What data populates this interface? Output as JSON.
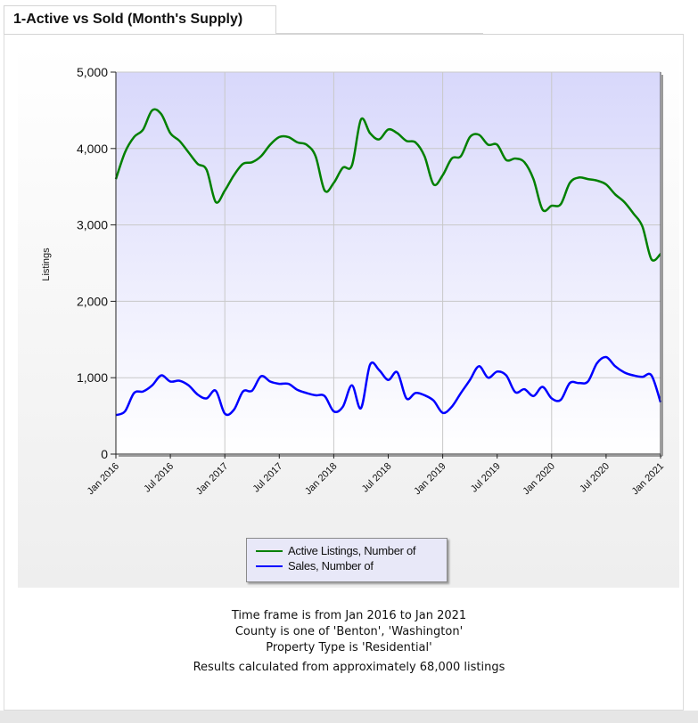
{
  "header": {
    "title": "1-Active vs Sold (Month's Supply)"
  },
  "chart_data": {
    "type": "line",
    "title": "",
    "xlabel": "",
    "ylabel": "Listings",
    "ylim": [
      0,
      5000
    ],
    "yticks": [
      0,
      1000,
      2000,
      3000,
      4000,
      5000
    ],
    "ytick_labels": [
      "0",
      "1,000",
      "2,000",
      "3,000",
      "4,000",
      "5,000"
    ],
    "xtick_labels": [
      "Jan 2016",
      "Jul 2016",
      "Jan 2017",
      "Jul 2017",
      "Jan 2018",
      "Jul 2018",
      "Jan 2019",
      "Jul 2019",
      "Jan 2020",
      "Jul 2020",
      "Jan 2021"
    ],
    "grid": true,
    "legend": "bottom-center",
    "x": [
      "Jan 2016",
      "Feb 2016",
      "Mar 2016",
      "Apr 2016",
      "May 2016",
      "Jun 2016",
      "Jul 2016",
      "Aug 2016",
      "Sep 2016",
      "Oct 2016",
      "Nov 2016",
      "Dec 2016",
      "Jan 2017",
      "Feb 2017",
      "Mar 2017",
      "Apr 2017",
      "May 2017",
      "Jun 2017",
      "Jul 2017",
      "Aug 2017",
      "Sep 2017",
      "Oct 2017",
      "Nov 2017",
      "Dec 2017",
      "Jan 2018",
      "Feb 2018",
      "Mar 2018",
      "Apr 2018",
      "May 2018",
      "Jun 2018",
      "Jul 2018",
      "Aug 2018",
      "Sep 2018",
      "Oct 2018",
      "Nov 2018",
      "Dec 2018",
      "Jan 2019",
      "Feb 2019",
      "Mar 2019",
      "Apr 2019",
      "May 2019",
      "Jun 2019",
      "Jul 2019",
      "Aug 2019",
      "Sep 2019",
      "Oct 2019",
      "Nov 2019",
      "Dec 2019",
      "Jan 2020",
      "Feb 2020",
      "Mar 2020",
      "Apr 2020",
      "May 2020",
      "Jun 2020",
      "Jul 2020",
      "Aug 2020",
      "Sep 2020",
      "Oct 2020",
      "Nov 2020",
      "Dec 2020",
      "Jan 2021"
    ],
    "series": [
      {
        "name": "Active Listings, Number of",
        "color": "#008000",
        "values": [
          3600,
          3950,
          4150,
          4250,
          4500,
          4450,
          4200,
          4100,
          3950,
          3800,
          3720,
          3300,
          3450,
          3650,
          3800,
          3820,
          3900,
          4050,
          4150,
          4150,
          4080,
          4050,
          3900,
          3450,
          3550,
          3750,
          3780,
          4380,
          4200,
          4120,
          4250,
          4200,
          4100,
          4080,
          3900,
          3530,
          3650,
          3870,
          3900,
          4150,
          4180,
          4050,
          4050,
          3850,
          3870,
          3820,
          3600,
          3200,
          3250,
          3270,
          3550,
          3620,
          3600,
          3580,
          3530,
          3400,
          3300,
          3150,
          2980,
          2550,
          2620
        ]
      },
      {
        "name": "Sales, Number of",
        "color": "#0000ff",
        "values": [
          510,
          560,
          800,
          820,
          900,
          1030,
          950,
          960,
          900,
          780,
          730,
          830,
          530,
          580,
          820,
          830,
          1020,
          950,
          920,
          920,
          840,
          800,
          770,
          760,
          560,
          620,
          900,
          600,
          1170,
          1100,
          970,
          1070,
          730,
          800,
          770,
          700,
          540,
          620,
          800,
          970,
          1150,
          1000,
          1080,
          1030,
          810,
          850,
          760,
          880,
          730,
          710,
          930,
          930,
          950,
          1190,
          1270,
          1150,
          1070,
          1030,
          1010,
          1030,
          680
        ]
      }
    ]
  },
  "notes": {
    "line1": "Time frame is from Jan 2016 to Jan 2021",
    "line2": "County is one of 'Benton', 'Washington'",
    "line3": "Property Type is 'Residential'",
    "summary": "Results calculated from approximately 68,000 listings"
  }
}
